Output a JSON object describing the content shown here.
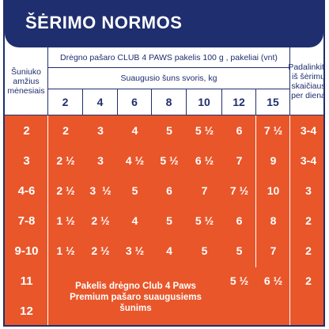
{
  "title": "ŠĖRIMO NORMOS",
  "header": {
    "age_col": "Šuniuko amžius mėnesiais",
    "product": "Drėgno pašaro CLUB 4 PAWS pakelis 100 g , pakeliai (vnt)",
    "weight": "Suaugusio šuns svoris, kg",
    "split_col": "Padalinkite iš šėrimų skaičiaus per dieną",
    "weights": [
      "2",
      "4",
      "6",
      "8",
      "10",
      "12",
      "15"
    ]
  },
  "rows": [
    {
      "age": "2",
      "values": [
        "2",
        "3",
        "4",
        "5",
        "5 ½",
        "6",
        "7 ½"
      ],
      "split": "3-4"
    },
    {
      "age": "3",
      "values": [
        "2 ½",
        "3",
        "4 ½",
        "5 ½",
        "6 ½",
        "7",
        "9"
      ],
      "split": "3-4"
    },
    {
      "age": "4-6",
      "values": [
        "2 ½",
        "3  ½",
        "5",
        "6",
        "7",
        "7 ½",
        "10"
      ],
      "split": "3"
    },
    {
      "age": "7-8",
      "values": [
        "1 ½",
        "2 ½",
        "4",
        "5",
        "5 ½",
        "6",
        "8"
      ],
      "split": "2"
    },
    {
      "age": "9-10",
      "values": [
        "1 ½",
        "2 ½",
        "3 ½",
        "4",
        "5",
        "5",
        "7"
      ],
      "split": "2"
    },
    {
      "age": "11",
      "values": [
        "",
        "",
        "",
        "",
        "",
        "5 ½",
        "6 ½"
      ],
      "split": "2"
    },
    {
      "age": "12",
      "values": [
        "",
        "",
        "",
        "",
        "",
        "",
        ""
      ],
      "split": ""
    }
  ],
  "note": "Pakelis drėgno Club 4 Paws Premium pašaro suaugusiems šunims",
  "colors": {
    "navy": "#1f2e6e",
    "orange": "#e8562a"
  }
}
